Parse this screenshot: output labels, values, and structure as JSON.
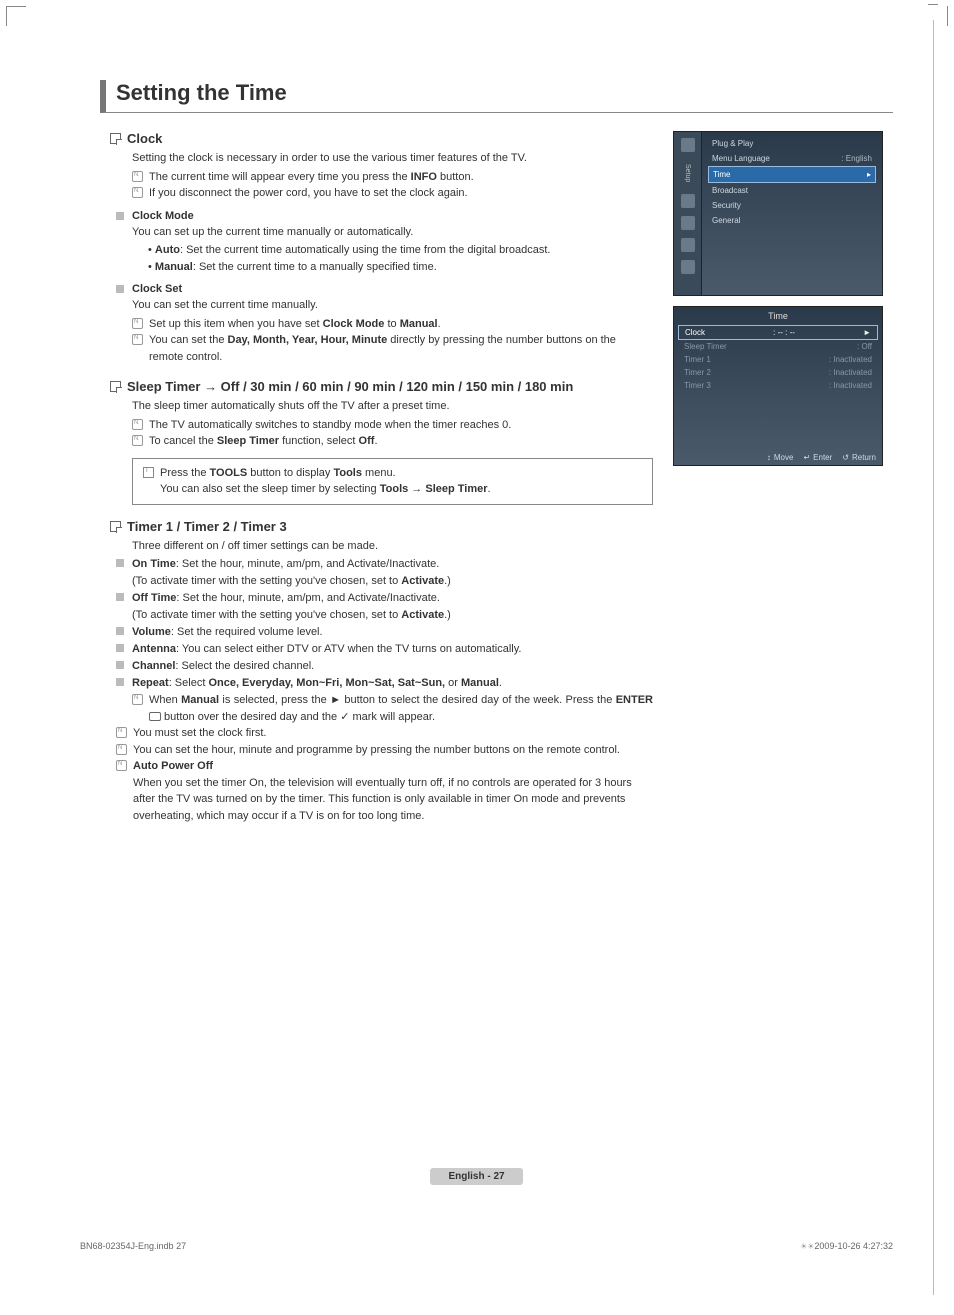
{
  "title": "Setting the Time",
  "clock": {
    "heading": "Clock",
    "intro": "Setting the clock is necessary in order to use the various timer features of the TV.",
    "note1_pre": "The current time will appear every time you press the ",
    "note1_b": "INFO",
    "note1_post": " button.",
    "note2": "If you disconnect the power cord, you have to set the clock again.",
    "mode_h": "Clock Mode",
    "mode_txt": "You can set up the current time manually or automatically.",
    "mode_auto_b": "Auto",
    "mode_auto": ": Set the current time automatically using the time from the digital broadcast.",
    "mode_man_b": "Manual",
    "mode_man": ": Set the current time to a manually specified time.",
    "set_h": "Clock Set",
    "set_txt": "You can set the current time manually.",
    "set_n1_pre": "Set up this item when you have set ",
    "set_n1_b1": "Clock Mode",
    "set_n1_mid": " to ",
    "set_n1_b2": "Manual",
    "set_n1_post": ".",
    "set_n2_pre": "You can set the ",
    "set_n2_b": "Day, Month, Year, Hour, Minute",
    "set_n2_post": " directly by pressing the number buttons on the remote control."
  },
  "sleep": {
    "heading": "Sleep Timer → Off / 30 min / 60 min / 90 min / 120 min / 150 min / 180 min",
    "txt": "The sleep timer automatically shuts off the TV after a preset time.",
    "n1": "The TV automatically switches to standby mode when the timer reaches 0.",
    "n2_pre": "To cancel the ",
    "n2_b1": "Sleep Timer",
    "n2_mid": " function, select ",
    "n2_b2": "Off",
    "n2_post": ".",
    "tip1_pre": "Press the ",
    "tip1_b1": "TOOLS",
    "tip1_mid": " button to display ",
    "tip1_b2": "Tools",
    "tip1_post": " menu.",
    "tip2_pre": "You can also set the sleep timer by selecting ",
    "tip2_b": "Tools → Sleep Timer",
    "tip2_post": "."
  },
  "timers": {
    "heading": "Timer 1 / Timer 2 / Timer 3",
    "intro": "Three different on / off timer settings can be made.",
    "ontime_b": "On Time",
    "ontime": ": Set the hour, minute, am/pm, and Activate/Inactivate.",
    "activate_pre": "(To activate timer with the setting you've chosen, set to ",
    "activate_b": "Activate",
    "activate_post": ".)",
    "offtime_b": "Off Time",
    "offtime": ": Set the hour, minute, am/pm, and Activate/Inactivate.",
    "vol_b": "Volume",
    "vol": ": Set the required volume level.",
    "ant_b": "Antenna",
    "ant": ": You can select either DTV or ATV when the TV turns on automatically.",
    "ch_b": "Channel",
    "ch": ": Select the desired channel.",
    "rep_b": "Repeat",
    "rep_pre": ": Select ",
    "rep_opts": "Once, Everyday, Mon~Fri, Mon~Sat, Sat~Sun, ",
    "rep_or": "or ",
    "rep_man": "Manual",
    "rep_post": ".",
    "rep_n_pre": "When ",
    "rep_n_b1": "Manual",
    "rep_n_mid1": " is selected, press the ► button to select the desired day of the week. Press the ",
    "rep_n_b2": "ENTER",
    "rep_n_mid2": " button over the desired day and the ",
    "rep_n_post": " mark will appear.",
    "foot_n1": "You must set the clock first.",
    "foot_n2": "You can set the hour, minute and programme by pressing the number buttons on the remote control.",
    "apo_b": "Auto Power Off",
    "apo": "When you set the timer On, the television will eventually turn off, if no controls are operated for 3 hours after the TV was turned on by the timer. This function is only available in timer On mode and prevents overheating, which may occur if a TV is on for too long time."
  },
  "osd1": {
    "side": "Setup",
    "r1": "Plug & Play",
    "r2": "Menu Language",
    "r2v": ": English",
    "r3": "Time",
    "r4": "Broadcast",
    "r5": "Security",
    "r6": "General"
  },
  "osd2": {
    "title": "Time",
    "rows": [
      {
        "l": "Clock",
        "v": ": -- : --",
        "sel": true,
        "arw": "►"
      },
      {
        "l": "Sleep Timer",
        "v": ": Off"
      },
      {
        "l": "Timer 1",
        "v": ": Inactivated"
      },
      {
        "l": "Timer 2",
        "v": ": Inactivated"
      },
      {
        "l": "Timer 3",
        "v": ": Inactivated"
      }
    ],
    "move": "Move",
    "enter": "Enter",
    "return": "Return"
  },
  "page_label": "English - 27",
  "footer_left": "BN68-02354J-Eng.indb   27",
  "footer_right": "2009-10-26   4:27:32"
}
